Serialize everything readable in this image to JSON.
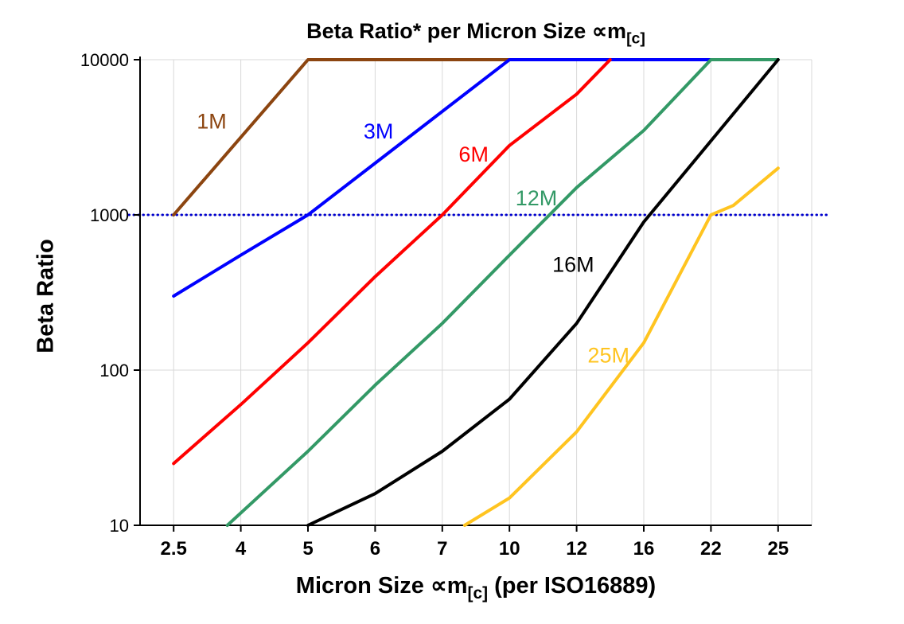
{
  "title": {
    "prefix": "Beta Ratio* per Micron Size ",
    "symbol": "∝m",
    "subscript": "[c]"
  },
  "y_axis": {
    "label": "Beta Ratio"
  },
  "x_axis": {
    "label_prefix": "Micron Size ",
    "label_symbol": "∝m",
    "label_subscript": "[c]",
    "label_suffix": " (per ISO16889)"
  },
  "chart_data": {
    "type": "line",
    "title": "Beta Ratio* per Micron Size ∝m[c]",
    "xlabel": "Micron Size ∝m[c] (per ISO16889)",
    "ylabel": "Beta Ratio",
    "x_scale": "categorical",
    "y_scale": "log",
    "ylim": [
      10,
      10000
    ],
    "grid": true,
    "grid_color": "#d8d8d8",
    "axis_color": "#000000",
    "categories": [
      2.5,
      4,
      5,
      6,
      7,
      10,
      12,
      16,
      22,
      25
    ],
    "y_ticks": [
      10,
      100,
      1000,
      10000
    ],
    "legend_position": "inline-labels",
    "reference_line": {
      "y": 1000,
      "color": "#0000cd",
      "style": "dotted"
    },
    "series": [
      {
        "name": "1M",
        "color": "#8c4510",
        "label_pos": [
          3.35,
          3600
        ],
        "points": [
          [
            2.5,
            1000
          ],
          [
            5,
            10000
          ],
          [
            10,
            10000
          ]
        ]
      },
      {
        "name": "3M",
        "color": "#0000ff",
        "label_pos": [
          6.05,
          3100
        ],
        "points": [
          [
            2.5,
            300
          ],
          [
            4,
            550
          ],
          [
            5,
            1000
          ],
          [
            10,
            10000
          ],
          [
            22,
            10000
          ]
        ]
      },
      {
        "name": "6M",
        "color": "#ff0000",
        "label_pos": [
          8.4,
          2200
        ],
        "points": [
          [
            2.5,
            25
          ],
          [
            4,
            60
          ],
          [
            5,
            150
          ],
          [
            6,
            400
          ],
          [
            7,
            1000
          ],
          [
            10,
            2800
          ],
          [
            12,
            6000
          ],
          [
            14,
            10000
          ]
        ]
      },
      {
        "name": "12M",
        "color": "#339966",
        "label_pos": [
          10.8,
          1150
        ],
        "points": [
          [
            3.7,
            10
          ],
          [
            5,
            30
          ],
          [
            6,
            80
          ],
          [
            7,
            200
          ],
          [
            10,
            550
          ],
          [
            12,
            1500
          ],
          [
            16,
            3500
          ],
          [
            22,
            10000
          ],
          [
            25,
            10000
          ]
        ]
      },
      {
        "name": "16M",
        "color": "#000000",
        "label_pos": [
          11.9,
          430
        ],
        "points": [
          [
            5,
            10
          ],
          [
            6,
            16
          ],
          [
            7,
            30
          ],
          [
            10,
            65
          ],
          [
            12,
            200
          ],
          [
            16,
            900
          ],
          [
            22,
            3000
          ],
          [
            25,
            10000
          ]
        ]
      },
      {
        "name": "25M",
        "color": "#ffc420",
        "label_pos": [
          13.9,
          112
        ],
        "points": [
          [
            8,
            10
          ],
          [
            10,
            15
          ],
          [
            12,
            40
          ],
          [
            16,
            150
          ],
          [
            22,
            1000
          ],
          [
            23,
            1150
          ],
          [
            25,
            2000
          ]
        ]
      }
    ]
  }
}
